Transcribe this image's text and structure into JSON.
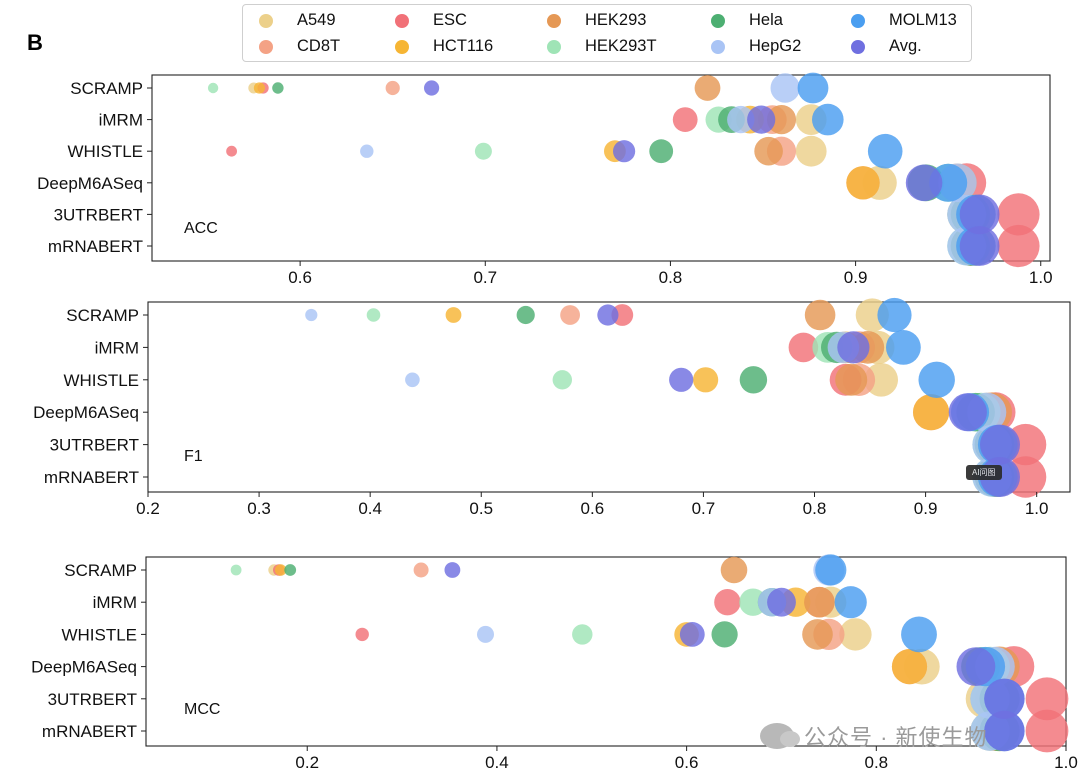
{
  "panel_label": "B",
  "legend": [
    {
      "name": "A549",
      "color": "#ecd08a"
    },
    {
      "name": "CD8T",
      "color": "#f4a285"
    },
    {
      "name": "ESC",
      "color": "#f17178"
    },
    {
      "name": "HCT116",
      "color": "#f6b534"
    },
    {
      "name": "HEK293",
      "color": "#e59855"
    },
    {
      "name": "HEK293T",
      "color": "#9fe4b6"
    },
    {
      "name": "Hela",
      "color": "#4daf72"
    },
    {
      "name": "HepG2",
      "color": "#a9c4f5"
    },
    {
      "name": "MOLM13",
      "color": "#4a9ef0"
    },
    {
      "name": "Avg.",
      "color": "#6f6fe0"
    }
  ],
  "watermark": "公众号 · 新使生物",
  "overlay_badge": "AI问图",
  "chart_data": [
    {
      "type": "scatter",
      "title": "ACC",
      "categories": [
        "SCRAMP",
        "iMRM",
        "WHISTLE",
        "DeepM6ASeq",
        "3UTRBERT",
        "mRNABERT"
      ],
      "xlim": [
        0.52,
        1.005
      ],
      "xticks": [
        0.6,
        0.7,
        0.8,
        0.9,
        1.0
      ],
      "tick_labels": [
        "0.6",
        "0.7",
        "0.8",
        "0.9",
        "1.0"
      ],
      "size_note": "marker size grows with metric value",
      "series": [
        {
          "name": "A549",
          "values": [
            0.575,
            0.876,
            0.876,
            0.913,
            0.962,
            0.964
          ]
        },
        {
          "name": "CD8T",
          "values": [
            0.65,
            0.855,
            0.86,
            0.904,
            0.96,
            0.962
          ]
        },
        {
          "name": "ESC",
          "values": [
            0.58,
            0.808,
            0.563,
            0.96,
            0.988,
            0.988
          ]
        },
        {
          "name": "HCT116",
          "values": [
            0.578,
            0.843,
            0.77,
            0.904,
            0.965,
            0.965
          ]
        },
        {
          "name": "HEK293",
          "values": [
            0.82,
            0.86,
            0.853,
            0.955,
            0.962,
            0.962
          ]
        },
        {
          "name": "HEK293T",
          "values": [
            0.553,
            0.826,
            0.699,
            0.95,
            0.96,
            0.96
          ]
        },
        {
          "name": "Hela",
          "values": [
            0.588,
            0.833,
            0.795,
            0.938,
            0.962,
            0.962
          ]
        },
        {
          "name": "HepG2",
          "values": [
            0.862,
            0.838,
            0.636,
            0.955,
            0.96,
            0.96
          ]
        },
        {
          "name": "MOLM13",
          "values": [
            0.877,
            0.885,
            0.916,
            0.95,
            0.965,
            0.965
          ]
        },
        {
          "name": "Avg.",
          "values": [
            0.671,
            0.849,
            0.775,
            0.937,
            0.967,
            0.967
          ]
        }
      ]
    },
    {
      "type": "scatter",
      "title": "F1",
      "categories": [
        "SCRAMP",
        "iMRM",
        "WHISTLE",
        "DeepM6ASeq",
        "3UTRBERT",
        "mRNABERT"
      ],
      "xlim": [
        0.2,
        1.03
      ],
      "xticks": [
        0.2,
        0.3,
        0.4,
        0.5,
        0.6,
        0.7,
        0.8,
        0.9,
        1.0
      ],
      "tick_labels": [
        "0.2",
        "0.3",
        "0.4",
        "0.5",
        "0.6",
        "0.7",
        "0.8",
        "0.9",
        "1.0"
      ],
      "size_note": "marker size grows with metric value",
      "series": [
        {
          "name": "A549",
          "values": [
            0.852,
            0.857,
            0.86,
            0.955,
            0.963,
            0.963
          ]
        },
        {
          "name": "CD8T",
          "values": [
            0.58,
            0.84,
            0.84,
            0.905,
            0.962,
            0.962
          ]
        },
        {
          "name": "ESC",
          "values": [
            0.627,
            0.79,
            0.828,
            0.963,
            0.99,
            0.99
          ]
        },
        {
          "name": "HCT116",
          "values": [
            0.475,
            0.828,
            0.702,
            0.905,
            0.965,
            0.965
          ]
        },
        {
          "name": "HEK293",
          "values": [
            0.805,
            0.848,
            0.833,
            0.96,
            0.962,
            0.962
          ]
        },
        {
          "name": "HEK293T",
          "values": [
            0.403,
            0.812,
            0.573,
            0.95,
            0.96,
            0.96
          ]
        },
        {
          "name": "Hela",
          "values": [
            0.54,
            0.82,
            0.745,
            0.945,
            0.962,
            0.962
          ]
        },
        {
          "name": "HepG2",
          "values": [
            0.347,
            0.826,
            0.438,
            0.955,
            0.96,
            0.96
          ]
        },
        {
          "name": "MOLM13",
          "values": [
            0.872,
            0.88,
            0.91,
            0.94,
            0.965,
            0.965
          ]
        },
        {
          "name": "Avg.",
          "values": [
            0.614,
            0.835,
            0.68,
            0.938,
            0.967,
            0.967
          ]
        }
      ]
    },
    {
      "type": "scatter",
      "title": "MCC",
      "categories": [
        "SCRAMP",
        "iMRM",
        "WHISTLE",
        "DeepM6ASeq",
        "3UTRBERT",
        "mRNABERT"
      ],
      "xlim": [
        0.03,
        1.0
      ],
      "xticks": [
        0.2,
        0.4,
        0.6,
        0.8,
        1.0
      ],
      "tick_labels": [
        "0.2",
        "0.4",
        "0.6",
        "0.8",
        "1.0"
      ],
      "size_note": "marker size grows with metric value",
      "series": [
        {
          "name": "A549",
          "values": [
            0.165,
            0.752,
            0.778,
            0.848,
            0.915,
            0.925
          ]
        },
        {
          "name": "CD8T",
          "values": [
            0.32,
            0.74,
            0.75,
            0.835,
            0.92,
            0.92
          ]
        },
        {
          "name": "ESC",
          "values": [
            0.17,
            0.643,
            0.258,
            0.945,
            0.98,
            0.98
          ]
        },
        {
          "name": "HCT116",
          "values": [
            0.172,
            0.715,
            0.6,
            0.835,
            0.93,
            0.93
          ]
        },
        {
          "name": "HEK293",
          "values": [
            0.65,
            0.74,
            0.738,
            0.93,
            0.925,
            0.925
          ]
        },
        {
          "name": "HEK293T",
          "values": [
            0.125,
            0.67,
            0.49,
            0.92,
            0.92,
            0.92
          ]
        },
        {
          "name": "Hela",
          "values": [
            0.182,
            0.69,
            0.64,
            0.91,
            0.93,
            0.93
          ]
        },
        {
          "name": "HepG2",
          "values": [
            0.75,
            0.69,
            0.388,
            0.925,
            0.92,
            0.92
          ]
        },
        {
          "name": "MOLM13",
          "values": [
            0.752,
            0.773,
            0.845,
            0.915,
            0.935,
            0.935
          ]
        },
        {
          "name": "Avg.",
          "values": [
            0.353,
            0.7,
            0.606,
            0.905,
            0.935,
            0.935
          ]
        }
      ]
    }
  ]
}
